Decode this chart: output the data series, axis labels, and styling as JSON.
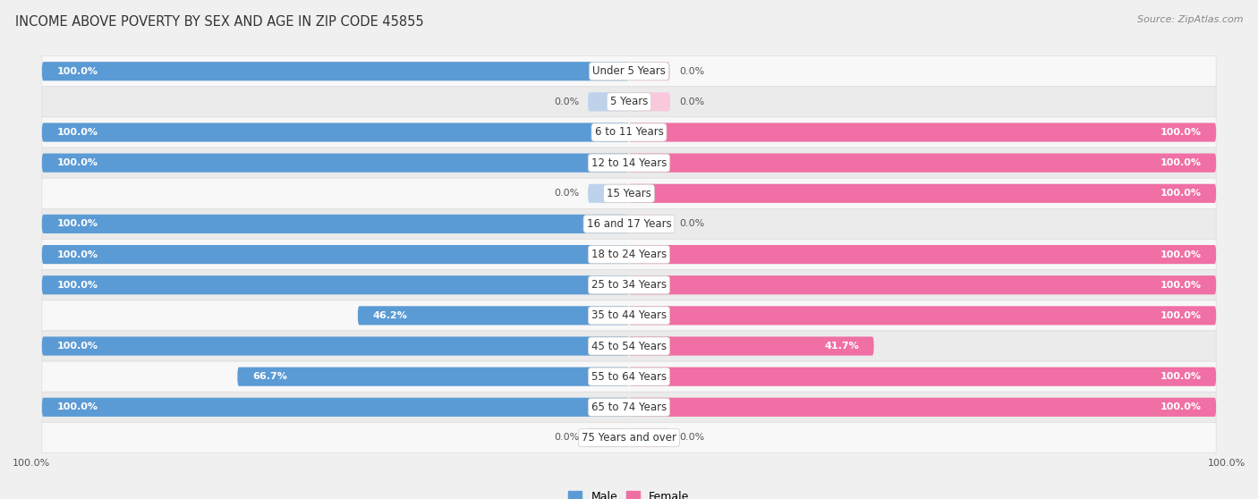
{
  "title": "INCOME ABOVE POVERTY BY SEX AND AGE IN ZIP CODE 45855",
  "source": "Source: ZipAtlas.com",
  "categories": [
    "Under 5 Years",
    "5 Years",
    "6 to 11 Years",
    "12 to 14 Years",
    "15 Years",
    "16 and 17 Years",
    "18 to 24 Years",
    "25 to 34 Years",
    "35 to 44 Years",
    "45 to 54 Years",
    "55 to 64 Years",
    "65 to 74 Years",
    "75 Years and over"
  ],
  "male": [
    100.0,
    0.0,
    100.0,
    100.0,
    0.0,
    100.0,
    100.0,
    100.0,
    46.2,
    100.0,
    66.7,
    100.0,
    0.0
  ],
  "female": [
    0.0,
    0.0,
    100.0,
    100.0,
    100.0,
    0.0,
    100.0,
    100.0,
    100.0,
    41.7,
    100.0,
    100.0,
    0.0
  ],
  "male_color": "#5b9bd5",
  "female_color": "#f06fa4",
  "male_light_color": "#bed3eb",
  "female_light_color": "#f9c8dd",
  "row_color_odd": "#ffffff",
  "row_color_even": "#efefef",
  "bg_color": "#f0f0f0",
  "label_color_inside": "#ffffff",
  "label_color_outside": "#555555",
  "title_fontsize": 10.5,
  "source_fontsize": 8,
  "label_fontsize": 8,
  "cat_fontsize": 8.5,
  "bar_height": 0.62,
  "stub_size": 7
}
